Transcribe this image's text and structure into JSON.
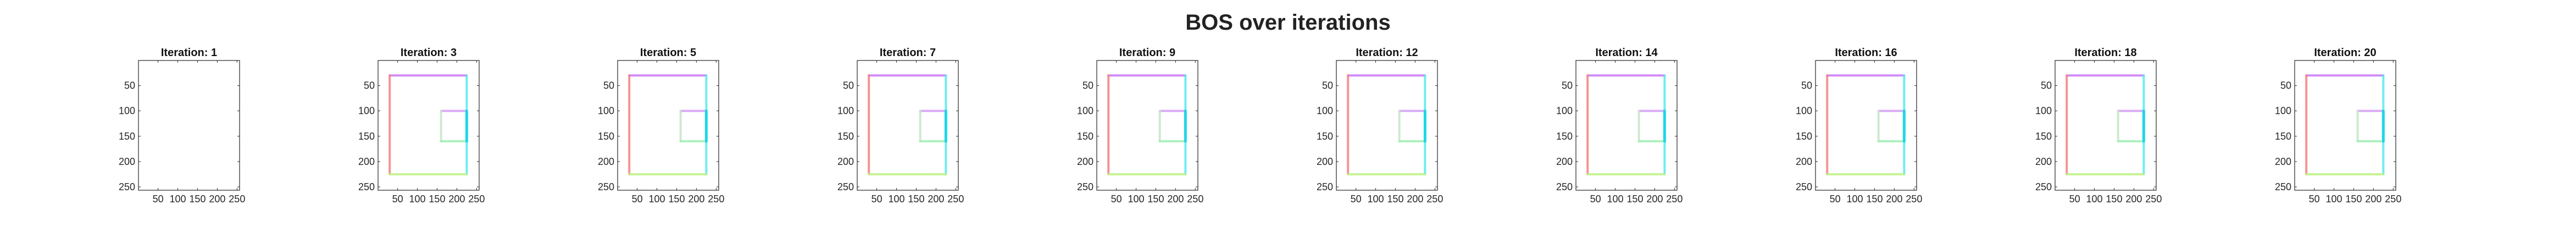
{
  "figure": {
    "title": "BOS over iterations"
  },
  "chart_data": {
    "type": "heatmap",
    "title": "BOS over iterations",
    "panels": [
      {
        "title": "Iteration: 1",
        "iteration": 1,
        "shapes_visible": false
      },
      {
        "title": "Iteration: 3",
        "iteration": 3,
        "shapes_visible": true
      },
      {
        "title": "Iteration: 5",
        "iteration": 5,
        "shapes_visible": true
      },
      {
        "title": "Iteration: 7",
        "iteration": 7,
        "shapes_visible": true
      },
      {
        "title": "Iteration: 9",
        "iteration": 9,
        "shapes_visible": true
      },
      {
        "title": "Iteration: 12",
        "iteration": 12,
        "shapes_visible": true
      },
      {
        "title": "Iteration: 14",
        "iteration": 14,
        "shapes_visible": true
      },
      {
        "title": "Iteration: 16",
        "iteration": 16,
        "shapes_visible": true
      },
      {
        "title": "Iteration: 18",
        "iteration": 18,
        "shapes_visible": true
      },
      {
        "title": "Iteration: 20",
        "iteration": 20,
        "shapes_visible": true
      }
    ],
    "image_extent": {
      "x": [
        0.5,
        256.5
      ],
      "y": [
        0.5,
        256.5
      ]
    },
    "x_ticks": [
      50,
      100,
      150,
      200,
      250
    ],
    "y_ticks": [
      50,
      100,
      150,
      200,
      250
    ],
    "y_axis_direction": "reversed",
    "grid": false,
    "edges": [
      {
        "name": "outer-top",
        "orientation": "horizontal",
        "coord": 30,
        "from": 30,
        "to": 225,
        "color": "#cc77f5"
      },
      {
        "name": "outer-left",
        "orientation": "vertical",
        "coord": 30,
        "from": 30,
        "to": 225,
        "color": "#f68181"
      },
      {
        "name": "outer-right",
        "orientation": "vertical",
        "coord": 225,
        "from": 30,
        "to": 225,
        "color": "#55eaf2"
      },
      {
        "name": "outer-bottom",
        "orientation": "horizontal",
        "coord": 225,
        "from": 30,
        "to": 225,
        "color": "#bff383"
      },
      {
        "name": "inner-top",
        "orientation": "horizontal",
        "coord": 100,
        "from": 160,
        "to": 225,
        "color": "#d59df5"
      },
      {
        "name": "inner-left",
        "orientation": "vertical",
        "coord": 100,
        "from": 160,
        "to": 160,
        "color": "#cccccc"
      },
      {
        "name": "inner-left-edge",
        "orientation": "vertical",
        "coord": 160,
        "from": 100,
        "to": 160,
        "color": "#c6e6c6"
      },
      {
        "name": "inner-bottom",
        "orientation": "horizontal",
        "coord": 160,
        "from": 160,
        "to": 225,
        "color": "#9fefb3"
      },
      {
        "name": "inner-right-strong",
        "orientation": "vertical",
        "coord": 225,
        "from": 100,
        "to": 160,
        "color": "#18d6e6"
      }
    ]
  }
}
